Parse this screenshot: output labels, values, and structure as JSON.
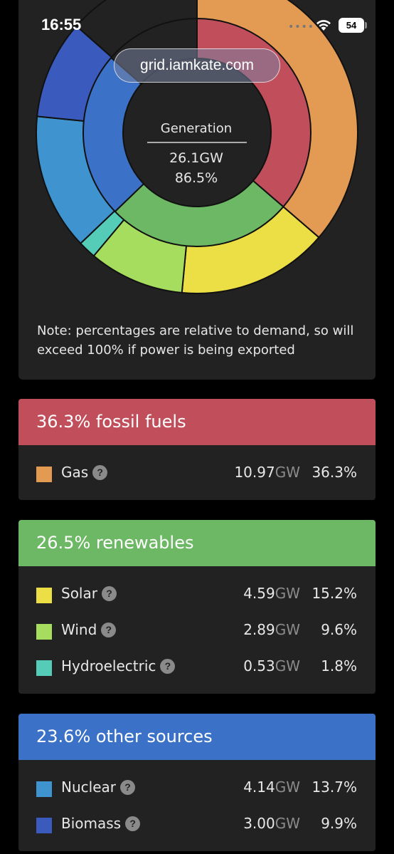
{
  "status_bar": {
    "time": "16:55",
    "battery": "54"
  },
  "browser": {
    "url": "grid.iamkate.com"
  },
  "generation": {
    "title": "Generation",
    "value": "26.1GW",
    "percent": "86.5%"
  },
  "note": "Note: percentages are relative to demand, so will exceed 100% if power is being exported",
  "groups": [
    {
      "title": "36.3% fossil fuels",
      "color": "#c14f5b",
      "sources": [
        {
          "name": "Gas",
          "gw": "10.97",
          "unit": "GW",
          "percent": "36.3%",
          "color": "#e39a52"
        }
      ]
    },
    {
      "title": "26.5% renewables",
      "color": "#6db865",
      "sources": [
        {
          "name": "Solar",
          "gw": "4.59",
          "unit": "GW",
          "percent": "15.2%",
          "color": "#ecdf45"
        },
        {
          "name": "Wind",
          "gw": "2.89",
          "unit": "GW",
          "percent": "9.6%",
          "color": "#a7dd5f"
        },
        {
          "name": "Hydroelectric",
          "gw": "0.53",
          "unit": "GW",
          "percent": "1.8%",
          "color": "#55ccb7"
        }
      ]
    },
    {
      "title": "23.6% other sources",
      "color": "#3b72c7",
      "sources": [
        {
          "name": "Nuclear",
          "gw": "4.14",
          "unit": "GW",
          "percent": "13.7%",
          "color": "#3f93cf"
        },
        {
          "name": "Biomass",
          "gw": "3.00",
          "unit": "GW",
          "percent": "9.9%",
          "color": "#3a5bbd"
        }
      ]
    }
  ],
  "donut": {
    "inner": [
      {
        "group": "fossil fuels",
        "value": 36.3,
        "color": "#c14f5b"
      },
      {
        "group": "renewables",
        "value": 26.5,
        "color": "#6db865"
      },
      {
        "group": "other sources",
        "value": 23.6,
        "color": "#3b72c7"
      },
      {
        "group": "spare",
        "value": 13.6,
        "color": "#222222"
      }
    ],
    "outer": [
      {
        "name": "Gas",
        "value": 36.3,
        "color": "#e39a52"
      },
      {
        "name": "Solar",
        "value": 15.2,
        "color": "#ecdf45"
      },
      {
        "name": "Wind",
        "value": 9.6,
        "color": "#a7dd5f"
      },
      {
        "name": "Hydroelectric",
        "value": 1.8,
        "color": "#55ccb7"
      },
      {
        "name": "Nuclear",
        "value": 13.7,
        "color": "#3f93cf"
      },
      {
        "name": "Biomass",
        "value": 9.9,
        "color": "#3a5bbd"
      },
      {
        "name": "spare",
        "value": 13.5,
        "color": "#222222"
      }
    ]
  }
}
